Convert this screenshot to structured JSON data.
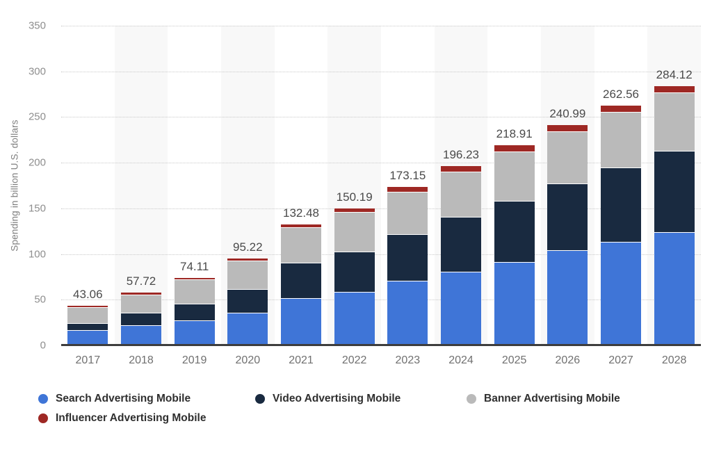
{
  "chart_data": {
    "type": "bar",
    "stacked": true,
    "title": "",
    "xlabel": "",
    "ylabel": "Spending in billion U.S. dollars",
    "ylim": [
      0,
      350
    ],
    "yticks": [
      0,
      50,
      100,
      150,
      200,
      250,
      300,
      350
    ],
    "grid": "horizontal-dotted",
    "legend_position": "bottom",
    "column_band_color": "#f8f8f8",
    "categories": [
      "2017",
      "2018",
      "2019",
      "2020",
      "2021",
      "2022",
      "2023",
      "2024",
      "2025",
      "2026",
      "2027",
      "2028"
    ],
    "series": [
      {
        "name": "Search Advertising Mobile",
        "slug": "search",
        "color": "#3F75D7",
        "values": [
          16.9,
          21.9,
          27.7,
          35.5,
          51.8,
          58.9,
          70.7,
          80.8,
          91.2,
          103.9,
          113.6,
          123.7
        ]
      },
      {
        "name": "Video Advertising Mobile",
        "slug": "video",
        "color": "#192A40",
        "values": [
          7.6,
          13.9,
          17.7,
          25.9,
          38.9,
          43.7,
          51.0,
          59.7,
          67.3,
          73.7,
          81.2,
          89.0
        ]
      },
      {
        "name": "Banner Advertising Mobile",
        "slug": "banner",
        "color": "#BABABA",
        "values": [
          17.2,
          20.0,
          27.2,
          31.8,
          38.5,
          43.2,
          46.8,
          49.5,
          54.1,
          56.9,
          61.0,
          64.5
        ]
      },
      {
        "name": "Influencer Advertising Mobile",
        "slug": "influencer",
        "color": "#9E2824",
        "values": [
          1.36,
          1.92,
          1.51,
          2.02,
          3.28,
          4.39,
          4.65,
          6.23,
          6.31,
          6.49,
          6.76,
          6.92
        ]
      }
    ],
    "total_labels": [
      "43.06",
      "57.72",
      "74.11",
      "95.22",
      "132.48",
      "150.19",
      "173.15",
      "196.23",
      "218.91",
      "240.99",
      "262.56",
      "284.12"
    ],
    "axis_colors": {
      "baseline": "#3d3d3d",
      "gridline": "#c9c9c9",
      "tick_text": "#8e8e8e",
      "category_text": "#707070",
      "total_text": "#4a4a4a"
    }
  }
}
